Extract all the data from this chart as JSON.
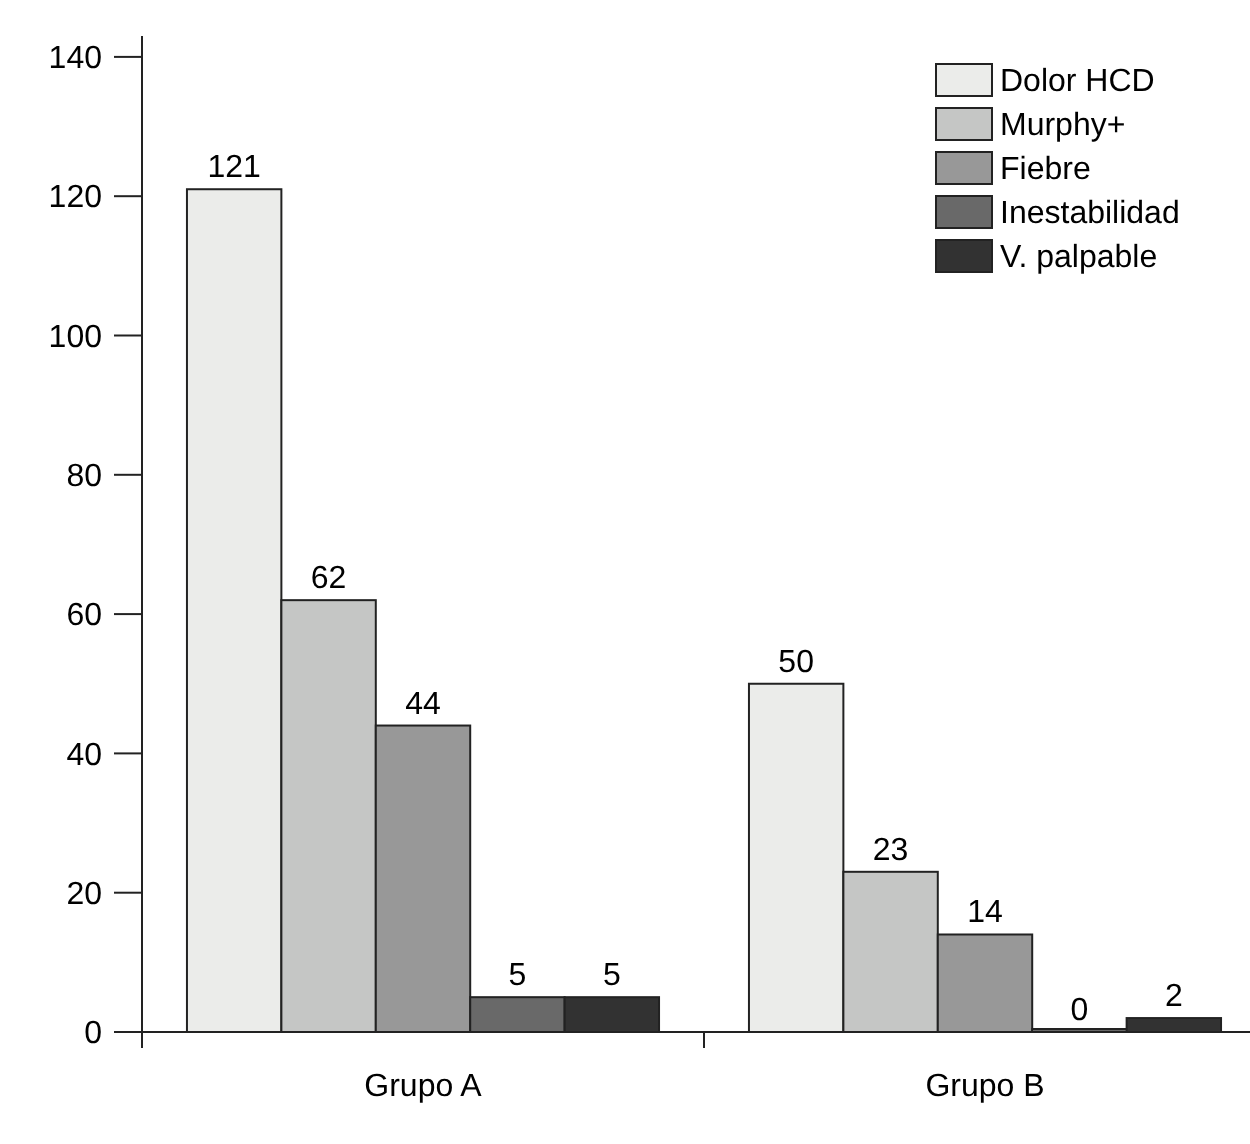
{
  "chart_data": {
    "type": "bar",
    "categories": [
      "Grupo A",
      "Grupo B"
    ],
    "series": [
      {
        "name": "Dolor HCD",
        "color": "#ebecea",
        "values": [
          121,
          50
        ]
      },
      {
        "name": "Murphy+",
        "color": "#c5c6c5",
        "values": [
          62,
          23
        ]
      },
      {
        "name": "Fiebre",
        "color": "#989898",
        "values": [
          44,
          14
        ]
      },
      {
        "name": "Inestabilidad",
        "color": "#696969",
        "values": [
          5,
          0
        ]
      },
      {
        "name": "V. palpable",
        "color": "#323232",
        "values": [
          5,
          2
        ]
      }
    ],
    "ylim": [
      0,
      143
    ],
    "yticks": [
      0,
      20,
      40,
      60,
      80,
      100,
      120,
      140
    ],
    "data_labels": true,
    "legend": "top right",
    "grid": false
  }
}
